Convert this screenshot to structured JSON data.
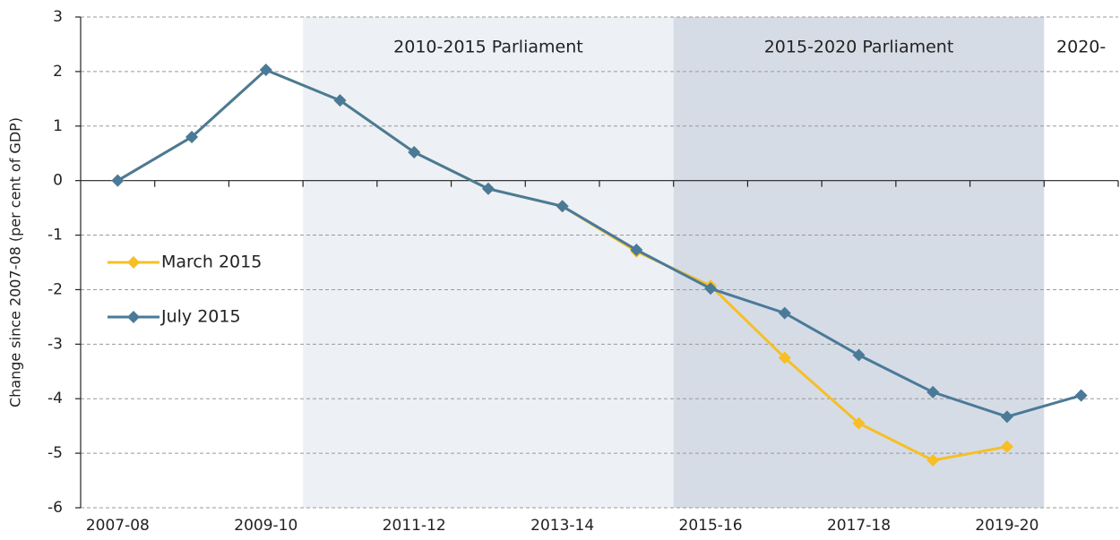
{
  "chart_data": {
    "type": "line",
    "y_label": "Change since 2007-08  (per cent of GDP)",
    "annotations": [
      "2010-2015 Parliament",
      "2015-2020 Parliament",
      "2020-"
    ],
    "categories": [
      "2007-08",
      null,
      "2009-10",
      null,
      "2011-12",
      null,
      "2013-14",
      null,
      "2015-16",
      null,
      "2017-18",
      null,
      "2019-20",
      null
    ],
    "series": [
      {
        "name": "March 2015",
        "color": "#f6bf26",
        "values": [
          0,
          0.8,
          2.03,
          1.47,
          0.52,
          -0.15,
          -0.47,
          -1.3,
          -1.93,
          -3.25,
          -4.45,
          -5.13,
          -4.88,
          null
        ]
      },
      {
        "name": "July 2015",
        "color": "#4a7a98",
        "values": [
          0,
          0.8,
          2.03,
          1.47,
          0.52,
          -0.15,
          -0.47,
          -1.27,
          -1.98,
          -2.43,
          -3.2,
          -3.88,
          -4.33,
          -3.94
        ]
      }
    ],
    "ylim": [
      -6,
      3
    ],
    "yticks": [
      -6,
      -5,
      -4,
      -3,
      -2,
      -1,
      0,
      1,
      2,
      3
    ],
    "grid": true,
    "legend": "left"
  }
}
